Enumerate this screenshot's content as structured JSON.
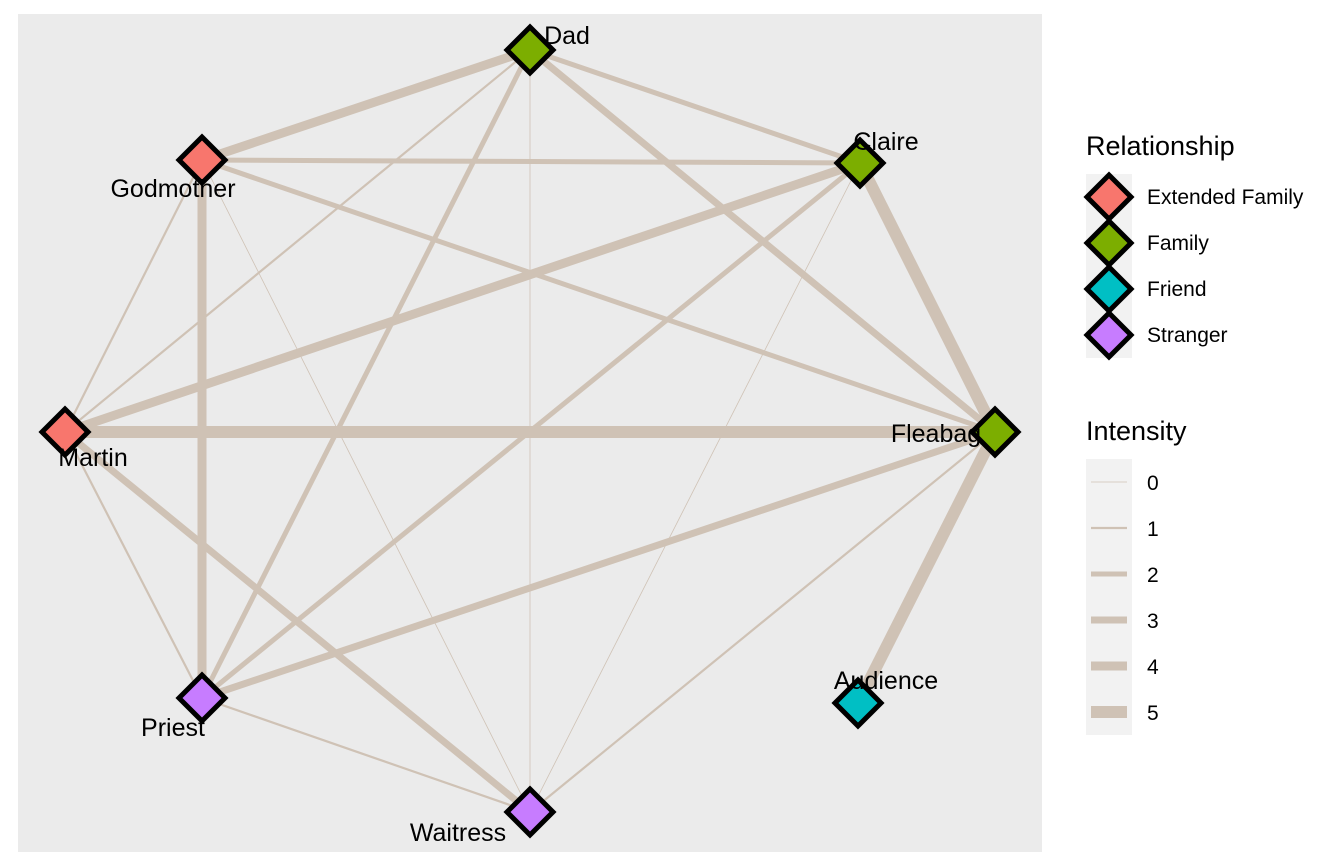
{
  "colors": {
    "panel_background": "#EBEBEB",
    "edge": "#CFC2B5",
    "legend_key_background": "#F2F2F2",
    "node_outline": "#000000"
  },
  "node_shape": "diamond",
  "nodes": [
    {
      "name": "Dad",
      "label": "Dad",
      "group": "Family"
    },
    {
      "name": "Claire",
      "label": "Claire",
      "group": "Family"
    },
    {
      "name": "Fleabag",
      "label": "Fleabag",
      "group": "Family"
    },
    {
      "name": "Audience",
      "label": "Audience",
      "group": "Friend"
    },
    {
      "name": "Waitress",
      "label": "Waitress",
      "group": "Stranger"
    },
    {
      "name": "Priest",
      "label": "Priest",
      "group": "Stranger"
    },
    {
      "name": "Martin",
      "label": "Martin",
      "group": "Extended Family"
    },
    {
      "name": "Godmother",
      "label": "Godmother",
      "group": "Extended Family"
    }
  ],
  "edges": [
    {
      "source": "Godmother",
      "target": "Dad",
      "intensity": 4
    },
    {
      "source": "Godmother",
      "target": "Claire",
      "intensity": 2
    },
    {
      "source": "Godmother",
      "target": "Fleabag",
      "intensity": 2
    },
    {
      "source": "Godmother",
      "target": "Martin",
      "intensity": 1
    },
    {
      "source": "Godmother",
      "target": "Priest",
      "intensity": 4
    },
    {
      "source": "Godmother",
      "target": "Waitress",
      "intensity": 0
    },
    {
      "source": "Dad",
      "target": "Claire",
      "intensity": 2
    },
    {
      "source": "Dad",
      "target": "Fleabag",
      "intensity": 3
    },
    {
      "source": "Dad",
      "target": "Martin",
      "intensity": 1
    },
    {
      "source": "Dad",
      "target": "Priest",
      "intensity": 2
    },
    {
      "source": "Dad",
      "target": "Waitress",
      "intensity": 0
    },
    {
      "source": "Claire",
      "target": "Fleabag",
      "intensity": 5
    },
    {
      "source": "Claire",
      "target": "Martin",
      "intensity": 4
    },
    {
      "source": "Claire",
      "target": "Priest",
      "intensity": 2
    },
    {
      "source": "Claire",
      "target": "Waitress",
      "intensity": 0
    },
    {
      "source": "Martin",
      "target": "Fleabag",
      "intensity": 5
    },
    {
      "source": "Martin",
      "target": "Priest",
      "intensity": 1
    },
    {
      "source": "Martin",
      "target": "Waitress",
      "intensity": 3
    },
    {
      "source": "Fleabag",
      "target": "Priest",
      "intensity": 3
    },
    {
      "source": "Fleabag",
      "target": "Waitress",
      "intensity": 1
    },
    {
      "source": "Fleabag",
      "target": "Audience",
      "intensity": 5
    },
    {
      "source": "Priest",
      "target": "Waitress",
      "intensity": 1
    }
  ],
  "legend_relationship": {
    "title": "Relationship",
    "items": [
      {
        "label": "Extended Family",
        "color": "#F8766D"
      },
      {
        "label": "Family",
        "color": "#7CAE00"
      },
      {
        "label": "Friend",
        "color": "#00BFC4"
      },
      {
        "label": "Stranger",
        "color": "#C77CFF"
      }
    ]
  },
  "legend_intensity": {
    "title": "Intensity",
    "items": [
      {
        "label": "0",
        "value": 0
      },
      {
        "label": "1",
        "value": 1
      },
      {
        "label": "2",
        "value": 2
      },
      {
        "label": "3",
        "value": 3
      },
      {
        "label": "4",
        "value": 4
      },
      {
        "label": "5",
        "value": 5
      }
    ]
  }
}
